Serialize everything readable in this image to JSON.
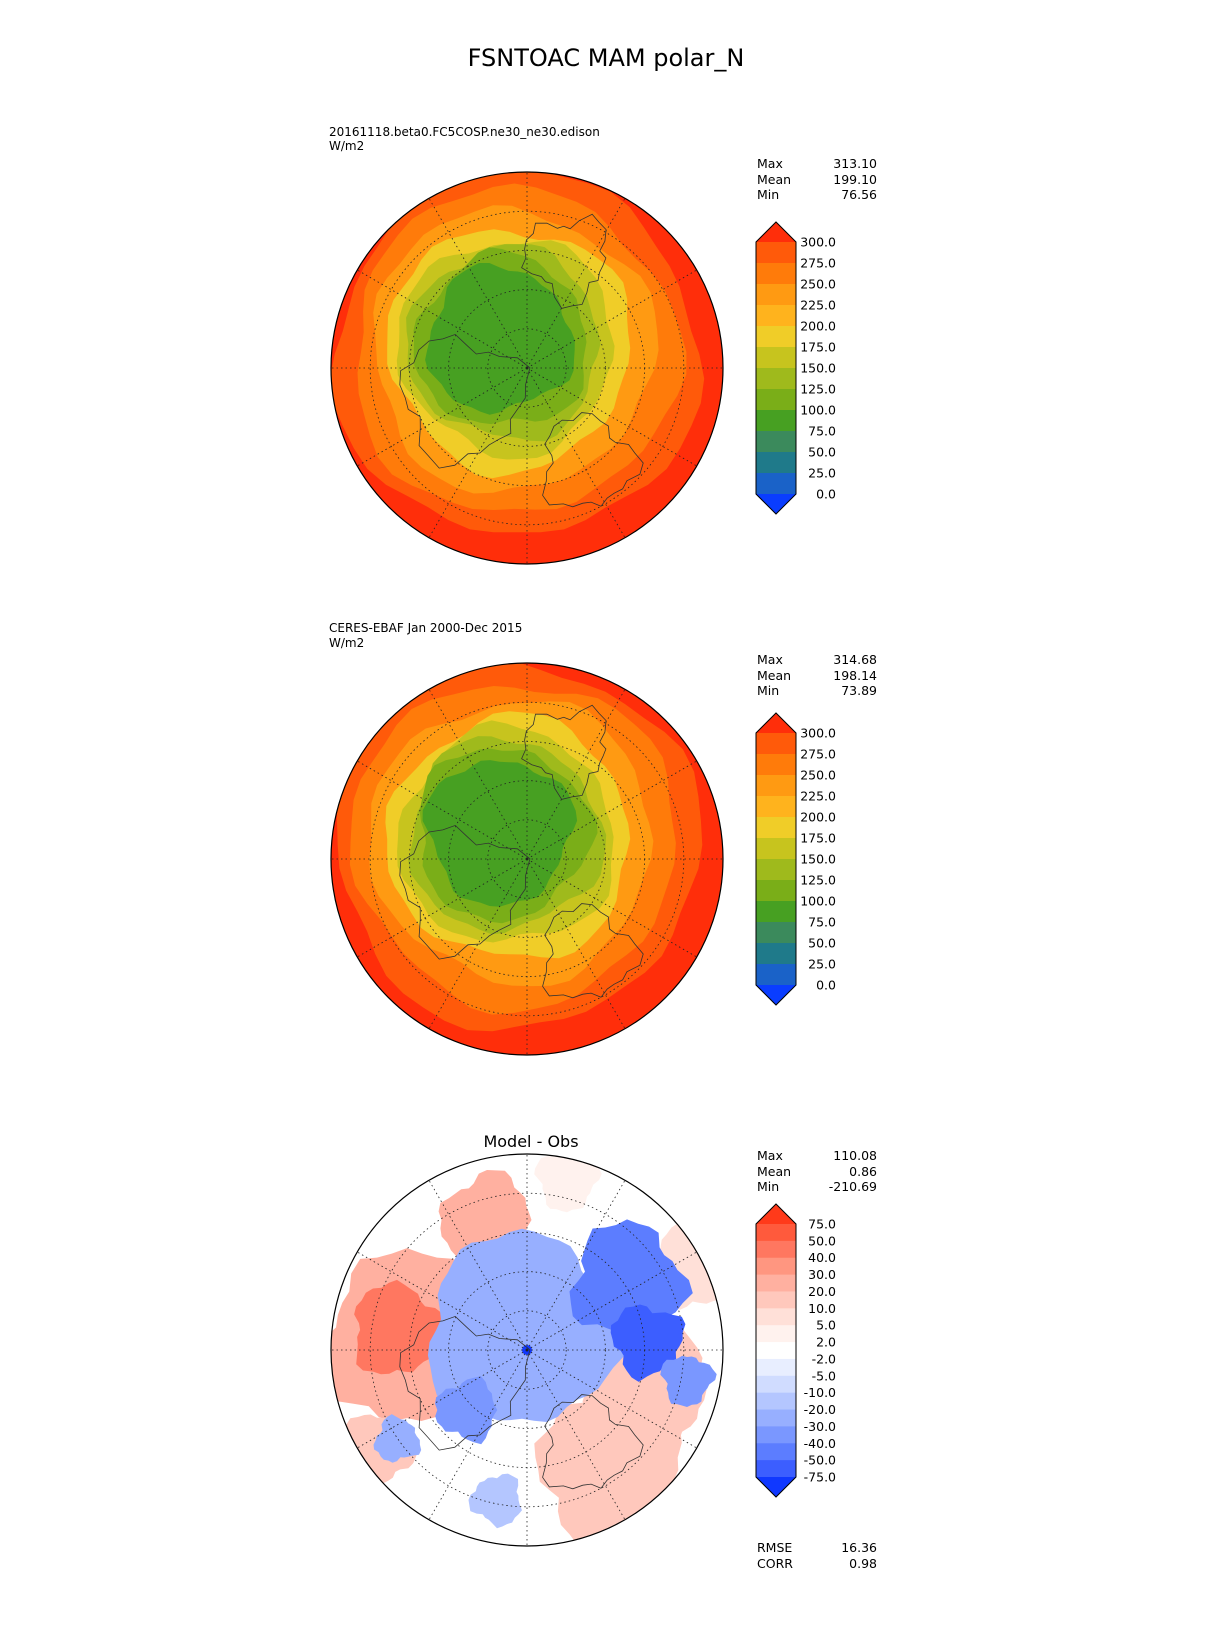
{
  "figure": {
    "title": "FSNTOAC MAM polar_N"
  },
  "panels": [
    {
      "subtitle": "20161118.beta0.FC5COSP.ne30_ne30.edison",
      "units": "W/m2",
      "stats": {
        "max_label": "Max",
        "max": "313.10",
        "mean_label": "Mean",
        "mean": "199.10",
        "min_label": "Min",
        "min": "76.56"
      }
    },
    {
      "subtitle": "CERES-EBAF Jan 2000-Dec 2015",
      "units": "W/m2",
      "stats": {
        "max_label": "Max",
        "max": "314.68",
        "mean_label": "Mean",
        "mean": "198.14",
        "min_label": "Min",
        "min": "73.89"
      }
    },
    {
      "title": "Model - Obs",
      "stats": {
        "max_label": "Max",
        "max": "110.08",
        "mean_label": "Mean",
        "mean": "0.86",
        "min_label": "Min",
        "min": "-210.69"
      },
      "metrics": {
        "rmse_label": "RMSE",
        "rmse": "16.36",
        "corr_label": "CORR",
        "corr": "0.98"
      }
    }
  ],
  "colorbars": {
    "field": {
      "ticks": [
        "300.0",
        "275.0",
        "250.0",
        "225.0",
        "200.0",
        "175.0",
        "150.0",
        "125.0",
        "100.0",
        "75.0",
        "50.0",
        "25.0",
        "0.0"
      ],
      "colors": [
        "#ff2e0a",
        "#ff5a0a",
        "#ff7b0a",
        "#ff9a12",
        "#ffb31d",
        "#f0cd28",
        "#c7c41e",
        "#9fba1c",
        "#7aae18",
        "#47a022",
        "#3b8a5c",
        "#1f7a8a",
        "#1a62c8",
        "#0a3dff"
      ]
    },
    "diff": {
      "ticks": [
        "75.0",
        "50.0",
        "40.0",
        "30.0",
        "20.0",
        "10.0",
        "5.0",
        "2.0",
        "-2.0",
        "-5.0",
        "-10.0",
        "-20.0",
        "-30.0",
        "-40.0",
        "-50.0",
        "-75.0"
      ],
      "colors": [
        "#ff3a1a",
        "#ff5a3c",
        "#ff7760",
        "#ff9680",
        "#ffb0a0",
        "#ffc8bc",
        "#ffe0d8",
        "#fff2ee",
        "#ffffff",
        "#e8eeff",
        "#d0dcff",
        "#b4c6ff",
        "#97afff",
        "#7a97ff",
        "#5c7dff",
        "#3c5eff",
        "#1038ff"
      ]
    }
  }
}
